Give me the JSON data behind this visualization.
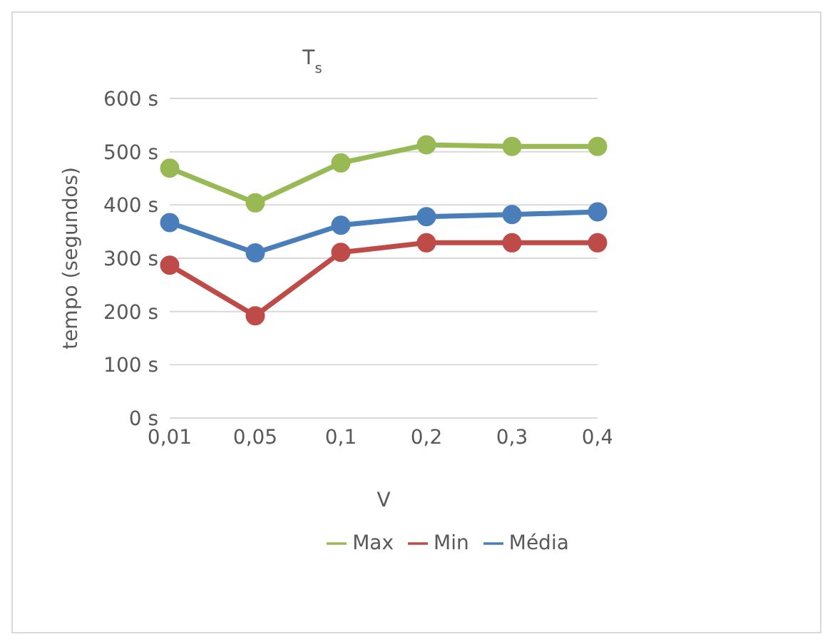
{
  "chart_data": {
    "type": "line",
    "title": "T$_{s}$",
    "xlabel": "V",
    "ylabel": "tempo (segundos)",
    "categories": [
      "0,01",
      "0,05",
      "0,1",
      "0,2",
      "0,3",
      "0,4"
    ],
    "series": [
      {
        "name": "Média",
        "color": "#4a7ebb",
        "values": [
          367,
          310,
          362,
          378,
          382,
          387
        ]
      },
      {
        "name": "Min",
        "color": "#be4b48",
        "values": [
          287,
          192,
          311,
          329,
          329,
          329
        ]
      },
      {
        "name": "Max",
        "color": "#98b954",
        "values": [
          469,
          404,
          479,
          513,
          510,
          510
        ]
      }
    ],
    "ylim": [
      0,
      600
    ],
    "yticks": [
      {
        "value": 0,
        "label": "0 s"
      },
      {
        "value": 100,
        "label": "100 s"
      },
      {
        "value": 200,
        "label": "200 s"
      },
      {
        "value": 300,
        "label": "300 s"
      },
      {
        "value": 400,
        "label": "400 s"
      },
      {
        "value": 500,
        "label": "500 s"
      },
      {
        "value": 600,
        "label": "600 s"
      }
    ],
    "grid": "y",
    "legend": "bottom",
    "marker": "circle",
    "line_style": "solid"
  }
}
